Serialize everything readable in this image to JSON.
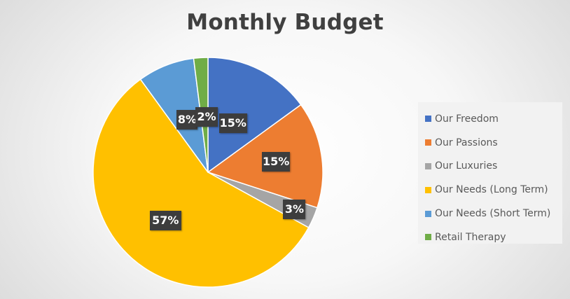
{
  "chart_data": {
    "type": "pie",
    "title": "Monthly Budget",
    "categories": [
      "Our Freedom",
      "Our Passions",
      "Our Luxuries",
      "Our Needs (Long Term)",
      "Our Needs (Short Term)",
      "Retail Therapy"
    ],
    "values": [
      15,
      15,
      3,
      57,
      8,
      2
    ],
    "data_labels": [
      "15%",
      "15%",
      "3%",
      "57%",
      "8%",
      "2%"
    ],
    "colors": [
      "#4472C4",
      "#ED7D31",
      "#A5A5A5",
      "#FFC000",
      "#5B9BD5",
      "#70AD47"
    ],
    "legend_position": "right"
  }
}
